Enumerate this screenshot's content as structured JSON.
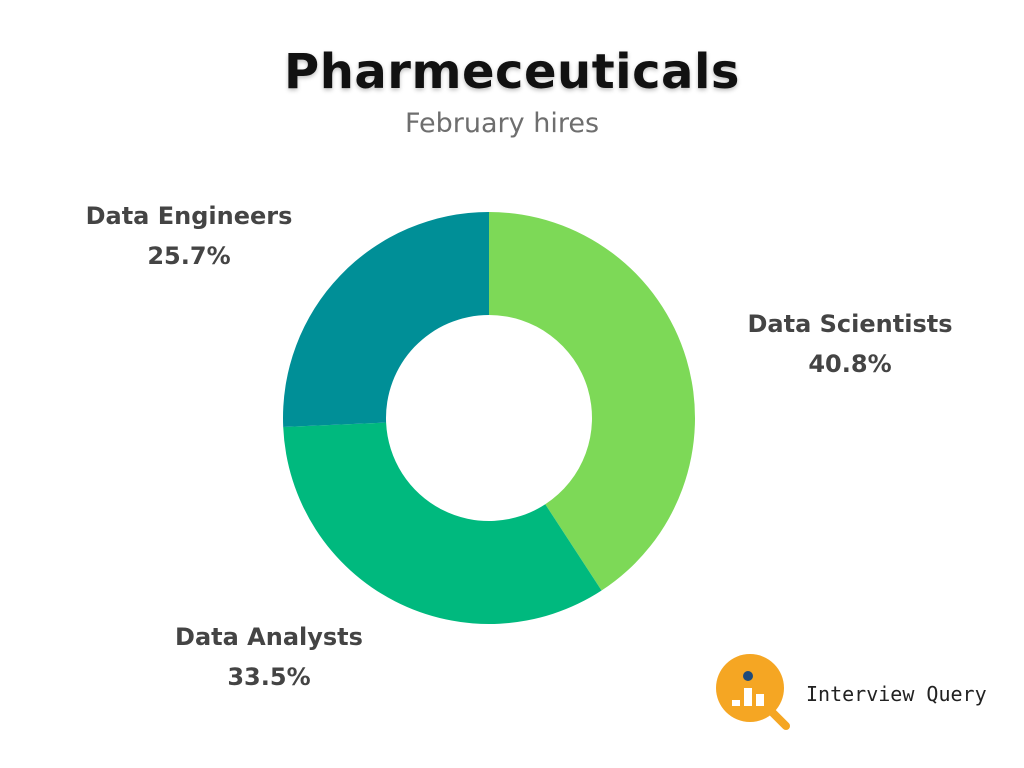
{
  "chart_data": {
    "type": "pie",
    "variant": "donut",
    "title": "Pharmeceuticals",
    "subtitle": "February hires",
    "categories": [
      "Data Scientists",
      "Data Analysts",
      "Data Engineers"
    ],
    "values": [
      40.8,
      33.5,
      25.7
    ],
    "value_labels": [
      "40.8%",
      "33.5%",
      "25.7%"
    ],
    "colors": [
      "#7dd957",
      "#00b97e",
      "#008f97"
    ]
  },
  "brand": {
    "name": "Interview Query",
    "logo_color": "#f5a623",
    "icon": "magnifier-bar-chart-icon"
  }
}
